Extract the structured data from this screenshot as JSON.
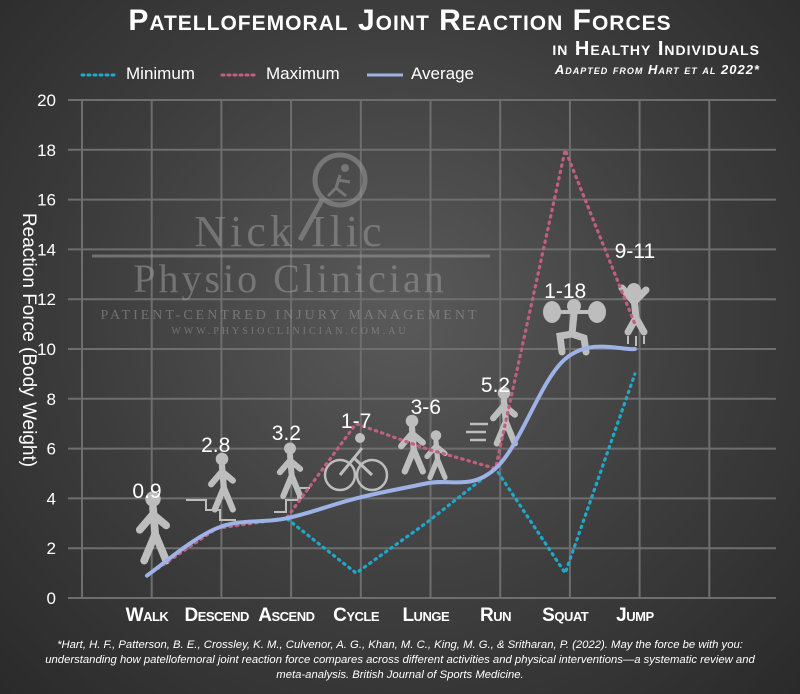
{
  "title": "Patellofemoral Joint Reaction Forces",
  "subtitle": "in Healthy Individuals",
  "source_note": "Adapted from Hart et al 2022*",
  "watermark": {
    "line1": "Nick Ilic",
    "line2": "Physio Clinician",
    "line3": "Patient-centred injury management",
    "line4": "www.physioclinician.com.au"
  },
  "footnote": "*Hart, H. F., Patterson, B. E., Crossley, K. M., Culvenor, A. G., Khan, M. C., King, M. G., & Sritharan, P. (2022). May the force be with you: understanding how patellofemoral joint reaction force compares across different activities and physical interventions—a systematic review and meta-analysis. British Journal of Sports Medicine.",
  "colors": {
    "minimum": "#1fa8c9",
    "maximum": "#c0607e",
    "average": "#9fb2e6",
    "grid": "#6e6e6e",
    "icon": "#bdbdbd"
  },
  "chart_data": {
    "type": "line",
    "ylabel": "Reaction Force (Body Weight)",
    "xlabel": "",
    "ylim": [
      0,
      20
    ],
    "yticks": [
      0,
      2,
      4,
      6,
      8,
      10,
      12,
      14,
      16,
      18,
      20
    ],
    "grid": true,
    "legend_position": "top-left",
    "categories": [
      "Walk",
      "Descend",
      "Ascend",
      "Cycle",
      "Lunge",
      "Run",
      "Squat",
      "Jump"
    ],
    "series": [
      {
        "name": "Minimum",
        "style": "dotted",
        "values": [
          0.9,
          2.8,
          3.2,
          1,
          3,
          5.2,
          1,
          9
        ]
      },
      {
        "name": "Maximum",
        "style": "dotted",
        "values": [
          0.9,
          2.8,
          3.2,
          7,
          6,
          5.2,
          18,
          11
        ]
      },
      {
        "name": "Average",
        "style": "solid",
        "values": [
          0.9,
          2.8,
          3.2,
          4.0,
          4.6,
          5.2,
          9.6,
          10
        ]
      }
    ],
    "annotations": [
      "0.9",
      "2.8",
      "3.2",
      "1-7",
      "3-6",
      "5.2",
      "1-18",
      "9-11"
    ]
  },
  "icons": [
    "walk-icon",
    "stairs-descend-icon",
    "stairs-ascend-icon",
    "cycle-icon",
    "lunge-icon",
    "run-icon",
    "squat-icon",
    "jump-icon"
  ]
}
